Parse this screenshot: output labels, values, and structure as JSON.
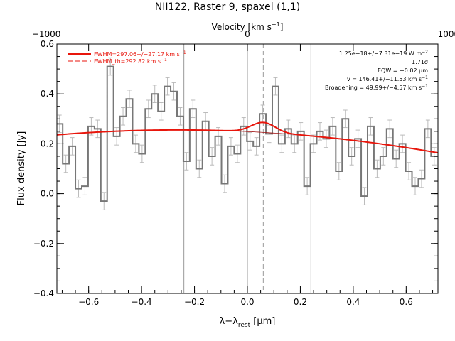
{
  "chart_data": {
    "type": "line",
    "title": "NII122, Raster 9, spaxel (1,1)",
    "xlabel_main": "λ−λ",
    "xlabel_sub": "rest",
    "xlabel_unit": " [μm]",
    "ylabel": "Flux density [Jy]",
    "top_axis_label_main": "Velocity [km s",
    "top_axis_label_sup": "−1",
    "top_axis_label_end": "]",
    "xlim": [
      -0.72,
      0.72
    ],
    "ylim": [
      -0.4,
      0.6
    ],
    "x_ticks": [
      -0.6,
      -0.4,
      -0.2,
      0.0,
      0.2,
      0.4,
      0.6
    ],
    "x_tick_labels": [
      "−0.6",
      "−0.4",
      "−0.2",
      "0.0",
      "0.2",
      "0.4",
      "0.6"
    ],
    "y_ticks": [
      -0.4,
      -0.2,
      0.0,
      0.2,
      0.4,
      0.6
    ],
    "y_tick_labels": [
      "−0.4",
      "−0.2",
      "0.0",
      "0.2",
      "0.4",
      "0.6"
    ],
    "top_ticks_x": [
      -0.76,
      0.0,
      0.76
    ],
    "top_tick_labels": [
      "−1000",
      "0",
      "1000"
    ],
    "vlines_solid": [
      -0.24,
      0.0,
      0.24
    ],
    "vline_dashed": 0.06,
    "legend": [
      {
        "label": "FWHM=297.06+/−27.17 km s",
        "sup": "−1",
        "style": "solid",
        "color": "#e8160c"
      },
      {
        "label": "FWHM_th=292.82 km s",
        "sup": "−1",
        "style": "dashed",
        "color": "#e8160c"
      }
    ],
    "annotations": [
      {
        "text": "1.25e−18+/−7.31e−19 W m",
        "sup": "−2"
      },
      {
        "text": "1.71σ",
        "sup": ""
      },
      {
        "text": "EQW = −0.02 μm",
        "sup": ""
      },
      {
        "text": "v = 146.41+/−11.53 km s",
        "sup": "−1"
      },
      {
        "text": "Broadening = 49.99+/−4.57 km s",
        "sup": "−1"
      }
    ],
    "series": [
      {
        "kind": "spectrum_step",
        "color": "#777777",
        "x": [
          -0.71,
          -0.686,
          -0.662,
          -0.638,
          -0.614,
          -0.59,
          -0.566,
          -0.542,
          -0.518,
          -0.494,
          -0.47,
          -0.446,
          -0.422,
          -0.398,
          -0.374,
          -0.35,
          -0.326,
          -0.302,
          -0.278,
          -0.254,
          -0.23,
          -0.206,
          -0.182,
          -0.158,
          -0.134,
          -0.11,
          -0.086,
          -0.062,
          -0.038,
          -0.014,
          0.01,
          0.034,
          0.058,
          0.082,
          0.106,
          0.13,
          0.154,
          0.178,
          0.202,
          0.226,
          0.25,
          0.274,
          0.298,
          0.322,
          0.346,
          0.37,
          0.394,
          0.418,
          0.442,
          0.466,
          0.49,
          0.514,
          0.538,
          0.562,
          0.586,
          0.61,
          0.634,
          0.658,
          0.682,
          0.706
        ],
        "y": [
          0.28,
          0.12,
          0.19,
          0.02,
          0.03,
          0.27,
          0.26,
          -0.03,
          0.51,
          0.23,
          0.31,
          0.38,
          0.2,
          0.16,
          0.34,
          0.4,
          0.33,
          0.43,
          0.41,
          0.31,
          0.13,
          0.34,
          0.1,
          0.29,
          0.15,
          0.23,
          0.04,
          0.19,
          0.16,
          0.27,
          0.21,
          0.19,
          0.32,
          0.24,
          0.43,
          0.2,
          0.26,
          0.2,
          0.25,
          0.03,
          0.2,
          0.25,
          0.22,
          0.27,
          0.09,
          0.3,
          0.15,
          0.22,
          -0.01,
          0.27,
          0.1,
          0.15,
          0.26,
          0.14,
          0.2,
          0.09,
          0.03,
          0.06,
          0.26,
          0.15
        ],
        "err": 0.035
      },
      {
        "kind": "fit",
        "color": "#e8160c",
        "continuum_coeffs": [
          0.249,
          -0.05,
          -0.095
        ],
        "gauss_amp": 0.04,
        "gauss_center": 0.06,
        "gauss_sigma": 0.045
      }
    ]
  }
}
